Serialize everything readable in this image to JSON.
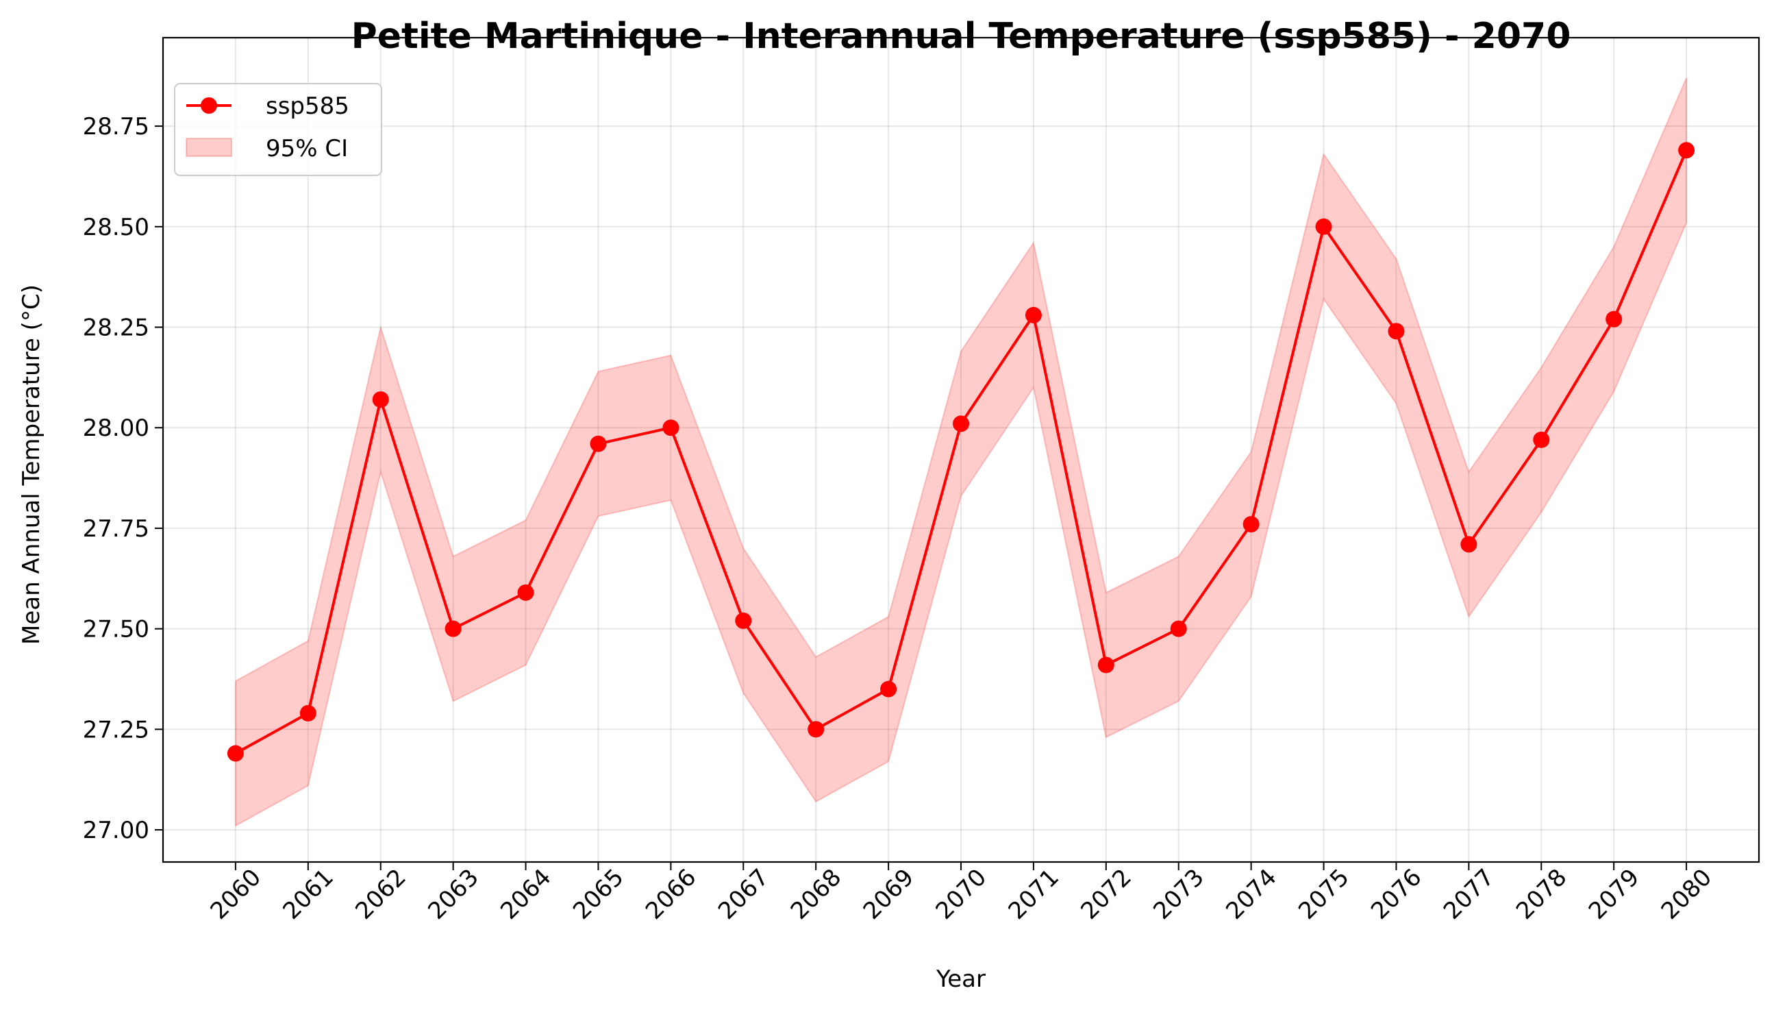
{
  "chart_data": {
    "type": "line",
    "title": "Petite Martinique - Interannual Temperature (ssp585) - 2070",
    "xlabel": "Year",
    "ylabel": "Mean Annual Temperature (°C)",
    "x": [
      2060,
      2061,
      2062,
      2063,
      2064,
      2065,
      2066,
      2067,
      2068,
      2069,
      2070,
      2071,
      2072,
      2073,
      2074,
      2075,
      2076,
      2077,
      2078,
      2079,
      2080
    ],
    "series": [
      {
        "name": "ssp585",
        "values": [
          27.19,
          27.29,
          28.07,
          27.5,
          27.59,
          27.96,
          28.0,
          27.52,
          27.25,
          27.35,
          28.01,
          28.28,
          27.41,
          27.5,
          27.76,
          28.5,
          28.24,
          27.71,
          27.97,
          28.27,
          28.69
        ],
        "color": "#ff0000"
      }
    ],
    "ci": {
      "name": "95% CI",
      "lower": [
        27.01,
        27.11,
        27.89,
        27.32,
        27.41,
        27.78,
        27.82,
        27.34,
        27.07,
        27.17,
        27.83,
        28.1,
        27.23,
        27.32,
        27.58,
        28.32,
        28.06,
        27.53,
        27.79,
        28.09,
        28.51
      ],
      "upper": [
        27.37,
        27.47,
        28.25,
        27.68,
        27.77,
        28.14,
        28.18,
        27.7,
        27.43,
        27.53,
        28.19,
        28.46,
        27.59,
        27.68,
        27.94,
        28.68,
        28.42,
        27.89,
        28.15,
        28.45,
        28.87
      ],
      "color": "#ff0000"
    },
    "xlim": [
      2059.0,
      2081.0
    ],
    "ylim": [
      26.92,
      28.97
    ],
    "yticks": [
      27.0,
      27.25,
      27.5,
      27.75,
      28.0,
      28.25,
      28.5,
      28.75
    ],
    "ytick_labels": [
      "27.00",
      "27.25",
      "27.50",
      "27.75",
      "28.00",
      "28.25",
      "28.50",
      "28.75"
    ],
    "xtick_labels": [
      "2060",
      "2061",
      "2062",
      "2063",
      "2064",
      "2065",
      "2066",
      "2067",
      "2068",
      "2069",
      "2070",
      "2071",
      "2072",
      "2073",
      "2074",
      "2075",
      "2076",
      "2077",
      "2078",
      "2079",
      "2080"
    ],
    "grid": true,
    "legend": {
      "placement": "top-left",
      "entries": [
        "ssp585",
        "95% CI"
      ]
    }
  }
}
